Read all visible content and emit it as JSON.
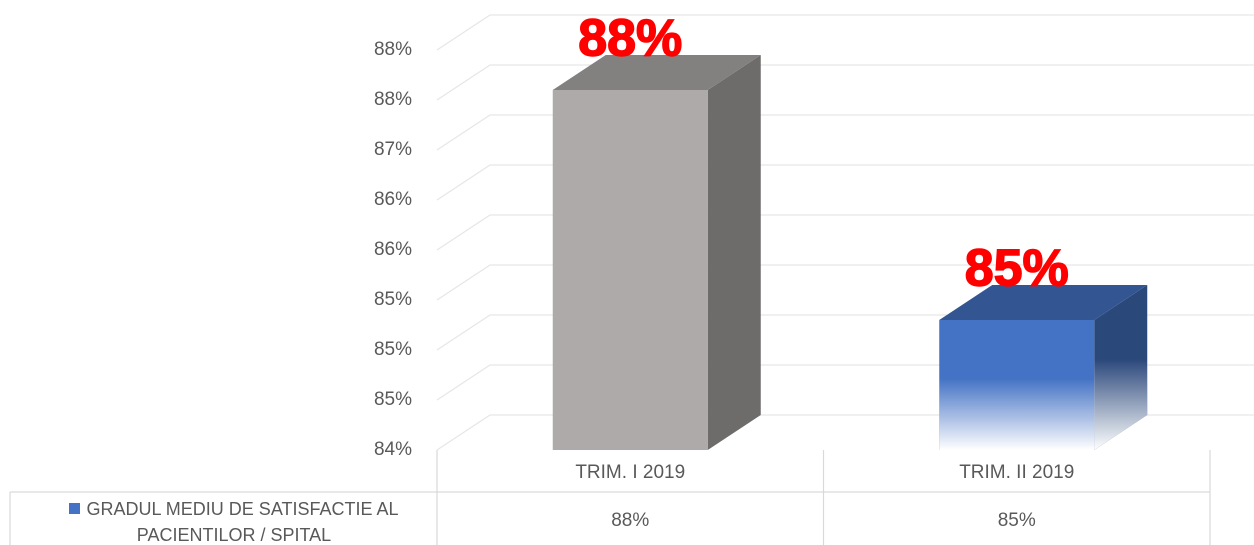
{
  "chart_data": {
    "type": "bar3d",
    "categories": [
      "TRIM. I 2019",
      "TRIM. II 2019"
    ],
    "series": [
      {
        "name": "GRADUL MEDIU DE SATISFACTIE AL PACIENTILOR / SPITAL",
        "color": "#4472c4",
        "point_colors": [
          "#aeaaaa",
          "#4472c4"
        ],
        "values": [
          87.6,
          85.3
        ],
        "value_labels": [
          "88%",
          "85%"
        ]
      }
    ],
    "ylim": [
      84,
      88
    ],
    "yticks": [
      {
        "value": 84,
        "label": "84%"
      },
      {
        "value": 84.5,
        "label": "85%"
      },
      {
        "value": 85,
        "label": "85%"
      },
      {
        "value": 85.5,
        "label": "85%"
      },
      {
        "value": 86,
        "label": "86%"
      },
      {
        "value": 86.5,
        "label": "86%"
      },
      {
        "value": 87,
        "label": "87%"
      },
      {
        "value": 87.5,
        "label": "88%"
      },
      {
        "value": 88,
        "label": "88%"
      }
    ],
    "grid": true,
    "data_table": true
  }
}
